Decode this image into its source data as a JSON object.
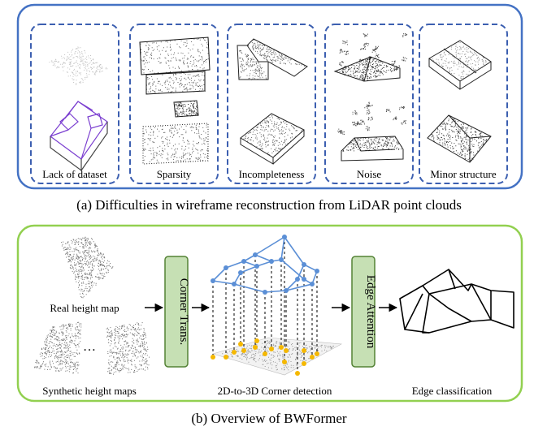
{
  "panel_a": {
    "caption": "(a) Difficulties in wireframe reconstruction from LiDAR point clouds",
    "labels": [
      "Lack of dataset",
      "Sparsity",
      "Incompleteness",
      "Noise",
      "Minor structure"
    ]
  },
  "panel_b": {
    "caption": "(b) Overview of BWFormer",
    "real_label": "Real height map",
    "synthetic_label": "Synthetic height maps",
    "ellipsis": "…",
    "corner_module": "Corner Trans.",
    "edge_module": "Edge Attention",
    "detection_label": "2D-to-3D Corner detection",
    "classification_label": "Edge classification"
  },
  "colors": {
    "panel_a_border": "#4472c4",
    "sub_box_dash": "#3c5fb0",
    "panel_b_border": "#92d050",
    "module_fill": "#c6e0b4",
    "module_border": "#548235",
    "corner_3d": "#5b8fd6",
    "corner_2d": "#f5b800",
    "wireframe_purple": "#7b3fd0"
  }
}
